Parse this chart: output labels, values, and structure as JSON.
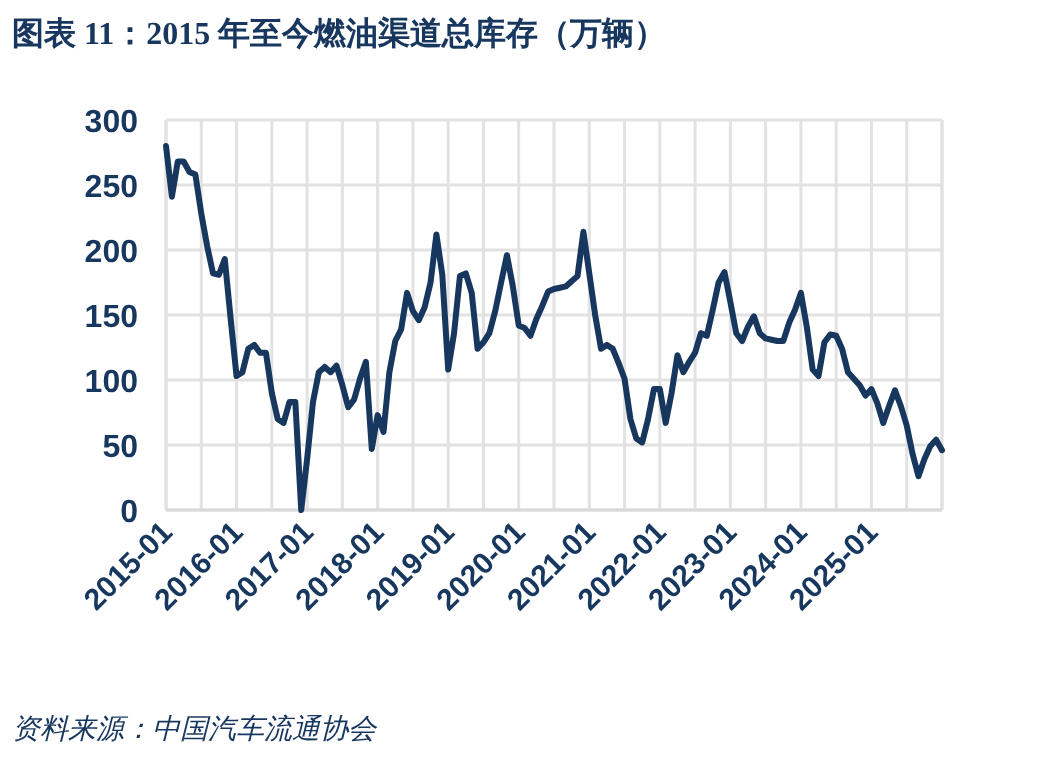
{
  "chart_data": {
    "type": "line",
    "title": "图表 11：2015 年至今燃油渠道总库存（万辆）",
    "annotations": [
      "资料来源：中国汽车流通协会"
    ],
    "series": [
      {
        "color": "#17375e",
        "x": [
          "2015-01",
          "2015-02",
          "2015-03",
          "2015-04",
          "2015-05",
          "2015-06",
          "2015-07",
          "2015-08",
          "2015-09",
          "2015-10",
          "2015-11",
          "2015-12",
          "2016-01",
          "2016-02",
          "2016-03",
          "2016-04",
          "2016-05",
          "2016-06",
          "2016-07",
          "2016-08",
          "2016-09",
          "2016-10",
          "2016-11",
          "2016-12",
          "2017-01",
          "2017-02",
          "2017-03",
          "2017-04",
          "2017-05",
          "2017-06",
          "2017-07",
          "2017-08",
          "2017-09",
          "2017-10",
          "2017-11",
          "2017-12",
          "2018-01",
          "2018-02",
          "2018-03",
          "2018-04",
          "2018-05",
          "2018-06",
          "2018-07",
          "2018-08",
          "2018-09",
          "2018-10",
          "2018-11",
          "2018-12",
          "2019-01",
          "2019-02",
          "2019-03",
          "2019-04",
          "2019-05",
          "2019-06",
          "2019-07",
          "2019-08",
          "2019-09",
          "2019-10",
          "2019-11",
          "2019-12",
          "2020-01",
          "2020-02",
          "2020-03",
          "2020-04",
          "2020-05",
          "2020-06",
          "2020-07",
          "2020-08",
          "2020-09",
          "2020-10",
          "2020-11",
          "2020-12",
          "2021-01",
          "2021-02",
          "2021-03",
          "2021-04",
          "2021-05",
          "2021-06",
          "2021-07",
          "2021-08",
          "2021-09",
          "2021-10",
          "2021-11",
          "2021-12",
          "2022-01",
          "2022-02",
          "2022-03",
          "2022-04",
          "2022-05",
          "2022-06",
          "2022-07",
          "2022-08",
          "2022-09",
          "2022-10",
          "2022-11",
          "2022-12",
          "2023-01",
          "2023-02",
          "2023-03",
          "2023-04",
          "2023-05",
          "2023-06",
          "2023-07",
          "2023-08",
          "2023-09",
          "2023-10",
          "2023-11",
          "2023-12",
          "2024-01",
          "2024-02",
          "2024-03",
          "2024-04",
          "2024-05",
          "2024-06",
          "2024-07",
          "2024-08",
          "2024-09",
          "2024-10",
          "2024-11",
          "2024-12",
          "2025-01",
          "2025-02",
          "2025-03",
          "2025-04",
          "2025-05",
          "2025-06",
          "2025-07",
          "2025-08",
          "2025-09",
          "2025-10",
          "2025-11",
          "2025-12",
          "2026-01"
        ],
        "values": [
          280,
          241,
          268,
          268,
          260,
          258,
          228,
          203,
          182,
          181,
          193,
          147,
          103,
          106,
          124,
          127,
          121,
          121,
          90,
          70,
          67,
          83,
          83,
          0,
          39,
          83,
          106,
          110,
          106,
          111,
          96,
          79,
          85,
          101,
          114,
          47,
          73,
          60,
          106,
          130,
          139,
          167,
          153,
          146,
          156,
          175,
          212,
          181,
          108,
          136,
          180,
          182,
          167,
          124,
          129,
          136,
          153,
          175,
          196,
          172,
          142,
          140,
          134,
          147,
          157,
          168,
          170,
          171,
          172,
          176,
          180,
          214,
          182,
          150,
          124,
          127,
          124,
          113,
          101,
          70,
          55,
          52,
          70,
          93,
          93,
          67,
          90,
          119,
          106,
          114,
          121,
          136,
          134,
          154,
          175,
          183,
          160,
          136,
          130,
          141,
          149,
          136,
          132,
          131,
          130,
          130,
          144,
          154,
          167,
          141,
          108,
          103,
          129,
          135,
          134,
          124,
          106,
          101,
          96,
          88,
          93,
          82,
          67,
          80,
          92,
          80,
          65,
          43,
          26,
          39,
          49,
          54,
          46
        ]
      }
    ],
    "xlim": [
      "2015-01",
      "2026-01"
    ],
    "xticks": [
      {
        "value": "2015-01",
        "label": "2015-01"
      },
      {
        "value": "2015-07",
        "label": null
      },
      {
        "value": "2016-01",
        "label": "2016-01"
      },
      {
        "value": "2016-07",
        "label": null
      },
      {
        "value": "2017-01",
        "label": "2017-01"
      },
      {
        "value": "2017-07",
        "label": null
      },
      {
        "value": "2018-01",
        "label": "2018-01"
      },
      {
        "value": "2018-07",
        "label": null
      },
      {
        "value": "2019-01",
        "label": "2019-01"
      },
      {
        "value": "2019-07",
        "label": null
      },
      {
        "value": "2020-01",
        "label": "2020-01"
      },
      {
        "value": "2020-07",
        "label": null
      },
      {
        "value": "2021-01",
        "label": "2021-01"
      },
      {
        "value": "2021-07",
        "label": null
      },
      {
        "value": "2022-01",
        "label": "2022-01"
      },
      {
        "value": "2022-07",
        "label": null
      },
      {
        "value": "2023-01",
        "label": "2023-01"
      },
      {
        "value": "2023-07",
        "label": null
      },
      {
        "value": "2024-01",
        "label": "2024-01"
      },
      {
        "value": "2024-07",
        "label": null
      },
      {
        "value": "2025-01",
        "label": "2025-01"
      },
      {
        "value": "2025-07",
        "label": null
      },
      {
        "value": "2026-01",
        "label": null
      }
    ],
    "ylim": [
      0,
      300
    ],
    "yticks": [
      0,
      50,
      100,
      150,
      200,
      250,
      300
    ],
    "grid": true,
    "line_style": "solid",
    "marker": "none"
  }
}
